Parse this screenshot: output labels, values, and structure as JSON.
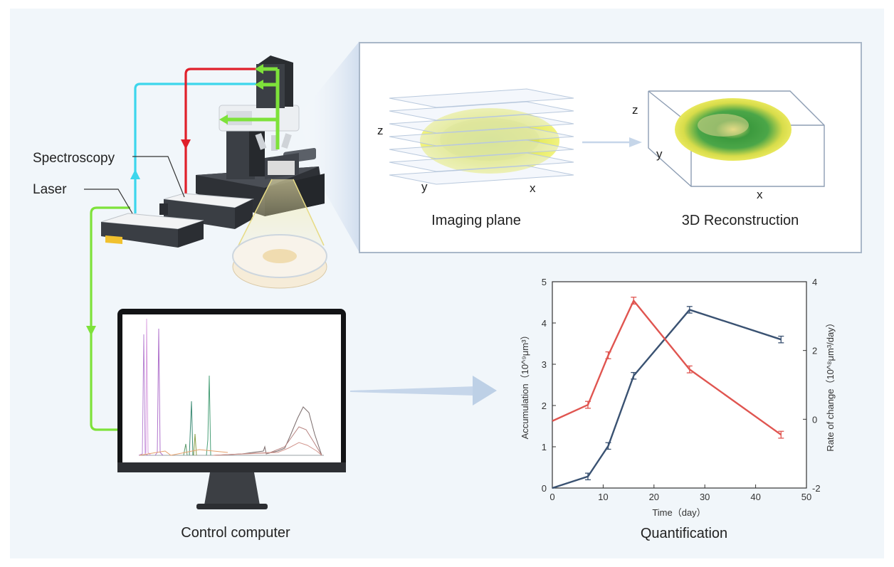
{
  "labels": {
    "spectroscopy": "Spectroscopy",
    "laser": "Laser",
    "imaging_plane": "Imaging plane",
    "reconstruction": "3D Reconstruction",
    "control_computer": "Control computer",
    "quantification": "Quantification",
    "axis_z": "z",
    "axis_y": "y",
    "axis_x": "x"
  },
  "colors": {
    "panel_bg": "#f1f6fa",
    "laser_path": "#7ee23a",
    "signal_path": "#3dd6ec",
    "return_path": "#e0202a",
    "series_accumulation": "#3a5272",
    "series_rate": "#e05550",
    "arrow": "#bcd0e6"
  },
  "chart_data": {
    "type": "line",
    "xlabel": "Time（day）",
    "ylabel": "Accumulation（10^⁹μm³）",
    "y2label": "Rate of change（10^⁸μm³/day）",
    "xlim": [
      0,
      50
    ],
    "ylim": [
      0,
      5
    ],
    "y2lim": [
      -2,
      4
    ],
    "x_ticks": [
      0,
      10,
      20,
      30,
      40,
      50
    ],
    "y_ticks": [
      0,
      1,
      2,
      3,
      4,
      5
    ],
    "y2_ticks": [
      -2,
      0,
      2,
      4
    ],
    "grid": false,
    "series": [
      {
        "axis": "left",
        "color": "#3a5272",
        "points": [
          [
            0,
            0
          ],
          [
            7,
            0.28
          ],
          [
            11,
            1.02
          ],
          [
            16,
            2.72
          ],
          [
            27,
            4.32
          ],
          [
            45,
            3.6
          ]
        ],
        "errors": [
          0,
          0.08,
          0.08,
          0.08,
          0.08,
          0.08
        ]
      },
      {
        "axis": "right",
        "color": "#e05550",
        "points": [
          [
            0,
            -0.05
          ],
          [
            7,
            0.42
          ],
          [
            11,
            1.86
          ],
          [
            16,
            3.45
          ],
          [
            27,
            1.45
          ],
          [
            45,
            -0.45
          ]
        ],
        "errors": [
          0,
          0.1,
          0.1,
          0.1,
          0.1,
          0.1
        ]
      }
    ]
  }
}
